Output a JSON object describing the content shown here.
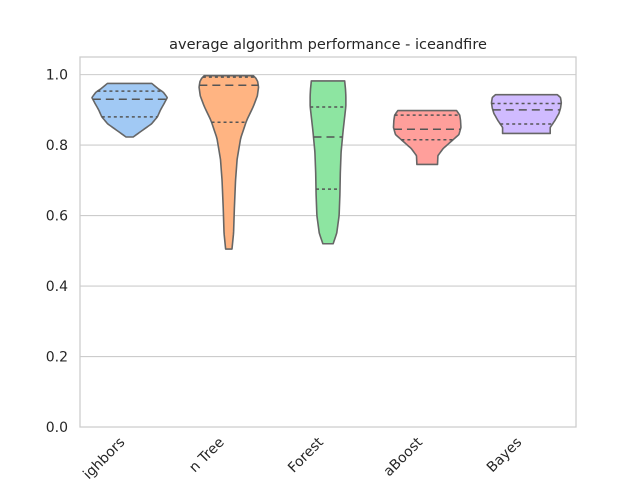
{
  "chart_data": {
    "type": "violin",
    "title": "average algorithm performance - iceandfire",
    "xlabel": "",
    "ylabel": "",
    "ylim": [
      0.0,
      1.05
    ],
    "yticks": [
      0.0,
      0.2,
      0.4,
      0.6,
      0.8,
      1.0
    ],
    "ytick_labels": [
      "0.0",
      "0.2",
      "0.4",
      "0.6",
      "0.8",
      "1.0"
    ],
    "grid": "y",
    "categories": [
      "ighbors",
      "n Tree",
      "Forest",
      "aBoost",
      "Bayes"
    ],
    "series": [
      {
        "colors": {
          "fill": "#a1c9f4"
        },
        "min": 0.823,
        "max": 0.975,
        "q1": 0.88,
        "median": 0.93,
        "q3": 0.953,
        "profile": [
          [
            0.823,
            0.09
          ],
          [
            0.84,
            0.3
          ],
          [
            0.86,
            0.55
          ],
          [
            0.88,
            0.7
          ],
          [
            0.9,
            0.78
          ],
          [
            0.92,
            0.88
          ],
          [
            0.935,
            0.95
          ],
          [
            0.95,
            0.85
          ],
          [
            0.96,
            0.72
          ],
          [
            0.975,
            0.56
          ]
        ]
      },
      {
        "colors": {
          "fill": "#ffb482"
        },
        "min": 0.505,
        "max": 0.997,
        "q1": 0.865,
        "median": 0.97,
        "q3": 0.993,
        "profile": [
          [
            0.505,
            0.08
          ],
          [
            0.55,
            0.12
          ],
          [
            0.62,
            0.14
          ],
          [
            0.7,
            0.17
          ],
          [
            0.76,
            0.21
          ],
          [
            0.82,
            0.3
          ],
          [
            0.87,
            0.45
          ],
          [
            0.91,
            0.62
          ],
          [
            0.94,
            0.72
          ],
          [
            0.965,
            0.75
          ],
          [
            0.985,
            0.72
          ],
          [
            0.997,
            0.62
          ]
        ]
      },
      {
        "colors": {
          "fill": "#8de5a1"
        },
        "min": 0.52,
        "max": 0.982,
        "q1": 0.675,
        "median": 0.823,
        "q3": 0.908,
        "profile": [
          [
            0.52,
            0.13
          ],
          [
            0.55,
            0.22
          ],
          [
            0.6,
            0.28
          ],
          [
            0.66,
            0.3
          ],
          [
            0.72,
            0.31
          ],
          [
            0.78,
            0.33
          ],
          [
            0.84,
            0.38
          ],
          [
            0.88,
            0.42
          ],
          [
            0.91,
            0.45
          ],
          [
            0.94,
            0.45
          ],
          [
            0.96,
            0.44
          ],
          [
            0.982,
            0.42
          ]
        ]
      },
      {
        "colors": {
          "fill": "#ff9f9b"
        },
        "min": 0.745,
        "max": 0.898,
        "q1": 0.815,
        "median": 0.845,
        "q3": 0.885,
        "profile": [
          [
            0.745,
            0.26
          ],
          [
            0.77,
            0.27
          ],
          [
            0.79,
            0.4
          ],
          [
            0.81,
            0.6
          ],
          [
            0.83,
            0.8
          ],
          [
            0.85,
            0.85
          ],
          [
            0.87,
            0.84
          ],
          [
            0.885,
            0.82
          ],
          [
            0.898,
            0.74
          ]
        ]
      },
      {
        "colors": {
          "fill": "#d0bbff"
        },
        "min": 0.833,
        "max": 0.943,
        "q1": 0.86,
        "median": 0.9,
        "q3": 0.918,
        "profile": [
          [
            0.833,
            0.6
          ],
          [
            0.85,
            0.6
          ],
          [
            0.87,
            0.72
          ],
          [
            0.89,
            0.82
          ],
          [
            0.905,
            0.86
          ],
          [
            0.92,
            0.88
          ],
          [
            0.935,
            0.86
          ],
          [
            0.943,
            0.78
          ]
        ]
      }
    ]
  }
}
